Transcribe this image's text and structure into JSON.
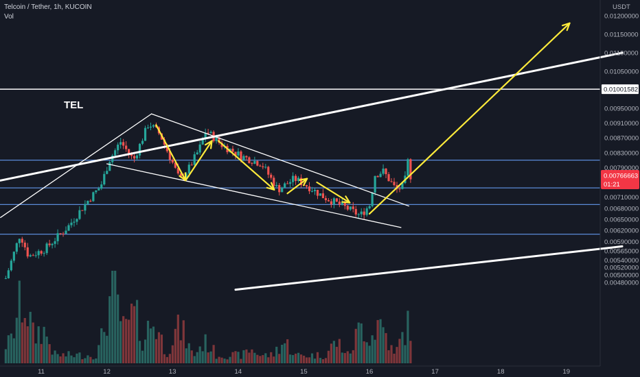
{
  "header": {
    "symbol": "Telcoin / Tether, 1h, KUCOIN",
    "indicator": "Vol"
  },
  "annotation_label": "TEL",
  "chart_data": {
    "type": "candlestick",
    "title": "Telcoin / Tether, 1h, KUCOIN",
    "price_unit": "USDT",
    "ylim": [
      0.0046,
      0.0122
    ],
    "y_ticks": [
      "0.01200000",
      "0.01150000",
      "0.01100000",
      "0.01050000",
      "0.00950000",
      "0.00910000",
      "0.00870000",
      "0.00830000",
      "0.00790000",
      "0.00710000",
      "0.00680000",
      "0.00650000",
      "0.00620000",
      "0.00590000",
      "0.00565000",
      "0.00540000",
      "0.00520000",
      "0.00500000",
      "0.00480000"
    ],
    "y_tick_values": [
      0.012,
      0.0115,
      0.011,
      0.0105,
      0.0095,
      0.0091,
      0.0087,
      0.0083,
      0.0079,
      0.0071,
      0.0068,
      0.0065,
      0.0062,
      0.0059,
      0.00565,
      0.0054,
      0.0052,
      0.005,
      0.0048
    ],
    "x_ticks": [
      "11",
      "12",
      "13",
      "14",
      "15",
      "16",
      "17",
      "18",
      "19"
    ],
    "x_tick_days": [
      11,
      12,
      13,
      14,
      15,
      16,
      17,
      18,
      19
    ],
    "xlim_days": [
      10.38,
      19.6
    ],
    "horizontal_levels": [
      {
        "value": 0.01001582,
        "label": "0.01001582",
        "color": "#ffffff"
      },
      {
        "value": 0.0081,
        "color": "#5b8bd8"
      },
      {
        "value": 0.00735,
        "color": "#5b8bd8"
      },
      {
        "value": 0.0069,
        "color": "#5b8bd8"
      },
      {
        "value": 0.0061,
        "color": "#5b8bd8"
      }
    ],
    "current_price": {
      "label": "0.00766663",
      "countdown": "01:21",
      "color": "#f23645"
    },
    "price_anchors": [
      {
        "d": 10.5,
        "p": 0.0049
      },
      {
        "d": 10.72,
        "p": 0.0061
      },
      {
        "d": 10.85,
        "p": 0.0055
      },
      {
        "d": 11.1,
        "p": 0.0057
      },
      {
        "d": 11.45,
        "p": 0.0063
      },
      {
        "d": 11.75,
        "p": 0.007
      },
      {
        "d": 11.95,
        "p": 0.0074
      },
      {
        "d": 12.08,
        "p": 0.0081
      },
      {
        "d": 12.25,
        "p": 0.0086
      },
      {
        "d": 12.45,
        "p": 0.0081
      },
      {
        "d": 12.68,
        "p": 0.0091
      },
      {
        "d": 12.85,
        "p": 0.0088
      },
      {
        "d": 13.05,
        "p": 0.008
      },
      {
        "d": 13.15,
        "p": 0.00755
      },
      {
        "d": 13.3,
        "p": 0.0079
      },
      {
        "d": 13.45,
        "p": 0.0084
      },
      {
        "d": 13.55,
        "p": 0.0089
      },
      {
        "d": 13.8,
        "p": 0.0085
      },
      {
        "d": 14.1,
        "p": 0.0082
      },
      {
        "d": 14.4,
        "p": 0.008
      },
      {
        "d": 14.65,
        "p": 0.0073
      },
      {
        "d": 14.9,
        "p": 0.0076
      },
      {
        "d": 15.1,
        "p": 0.0074
      },
      {
        "d": 15.35,
        "p": 0.0071
      },
      {
        "d": 15.7,
        "p": 0.0068
      },
      {
        "d": 15.9,
        "p": 0.0066
      },
      {
        "d": 16.05,
        "p": 0.0069
      },
      {
        "d": 16.12,
        "p": 0.0077
      },
      {
        "d": 16.25,
        "p": 0.0078
      },
      {
        "d": 16.45,
        "p": 0.0073
      },
      {
        "d": 16.57,
        "p": 0.0074
      },
      {
        "d": 16.63,
        "p": 0.0081
      },
      {
        "d": 16.66,
        "p": 0.00767
      }
    ],
    "volume_peaks": [
      {
        "d": 10.5,
        "v": 0.3
      },
      {
        "d": 10.72,
        "v": 0.9
      },
      {
        "d": 11.0,
        "v": 0.5
      },
      {
        "d": 12.1,
        "v": 1.0
      },
      {
        "d": 12.4,
        "v": 0.7
      },
      {
        "d": 12.7,
        "v": 0.6
      },
      {
        "d": 13.1,
        "v": 0.5
      },
      {
        "d": 13.5,
        "v": 0.3
      },
      {
        "d": 14.2,
        "v": 0.2
      },
      {
        "d": 14.7,
        "v": 0.3
      },
      {
        "d": 15.5,
        "v": 0.3
      },
      {
        "d": 15.9,
        "v": 0.55
      },
      {
        "d": 16.15,
        "v": 0.6
      },
      {
        "d": 16.6,
        "v": 0.55
      }
    ],
    "trendlines": [
      {
        "color": "#ffffff",
        "width": 3,
        "from": {
          "d": 10.38,
          "p": 0.00755
        },
        "to": {
          "d": 19.85,
          "p": 0.011
        }
      },
      {
        "color": "#ffffff",
        "width": 3,
        "from": {
          "d": 13.96,
          "p": 0.0046
        },
        "to": {
          "d": 19.85,
          "p": 0.00577
        }
      },
      {
        "color": "#ffffff",
        "width": 1.3,
        "from": {
          "d": 10.38,
          "p": 0.00655
        },
        "to": {
          "d": 12.68,
          "p": 0.00935
        }
      },
      {
        "color": "#ffffff",
        "width": 1.3,
        "from": {
          "d": 12.68,
          "p": 0.00935
        },
        "to": {
          "d": 16.6,
          "p": 0.00686
        }
      },
      {
        "color": "#ffffff",
        "width": 1.3,
        "from": {
          "d": 12.0,
          "p": 0.008
        },
        "to": {
          "d": 16.48,
          "p": 0.00628
        }
      }
    ],
    "arrows": [
      {
        "color": "#ffeb3b",
        "from": {
          "d": 12.75,
          "p": 0.00905
        },
        "to": {
          "d": 13.2,
          "p": 0.00755
        }
      },
      {
        "color": "#ffeb3b",
        "from": {
          "d": 13.2,
          "p": 0.00755
        },
        "to": {
          "d": 13.6,
          "p": 0.00862
        }
      },
      {
        "color": "#ffeb3b",
        "from": {
          "d": 13.7,
          "p": 0.00862
        },
        "to": {
          "d": 14.55,
          "p": 0.0073
        }
      },
      {
        "color": "#ffeb3b",
        "from": {
          "d": 14.75,
          "p": 0.0072
        },
        "to": {
          "d": 15.05,
          "p": 0.0076
        }
      },
      {
        "color": "#ffeb3b",
        "from": {
          "d": 15.2,
          "p": 0.0075
        },
        "to": {
          "d": 15.7,
          "p": 0.00695
        }
      },
      {
        "color": "#ffeb3b",
        "from": {
          "d": 16.0,
          "p": 0.00665
        },
        "to": {
          "d": 19.05,
          "p": 0.0118
        }
      }
    ]
  }
}
